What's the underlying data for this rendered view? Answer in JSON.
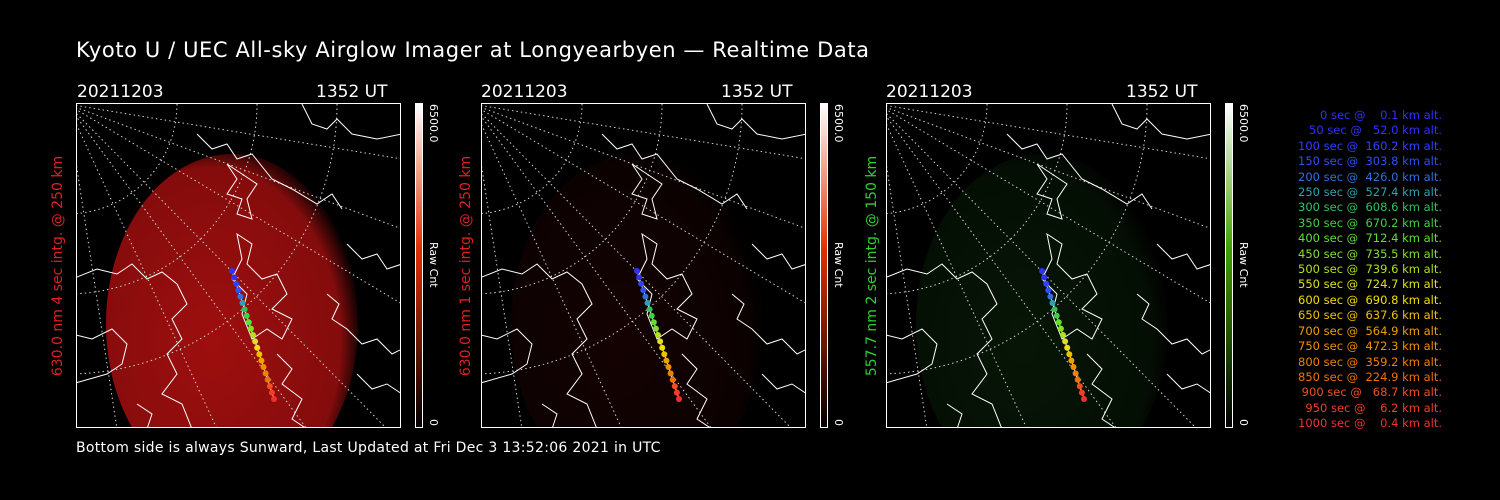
{
  "title": "Kyoto U / UEC All-sky Airglow Imager at Longyearbyen — Realtime Data",
  "footer": "Bottom side is always Sunward, Last Updated at Fri Dec  3 13:52:06 2021 in UTC",
  "panels": [
    {
      "date": "20211203",
      "time": "1352 UT",
      "label": "630.0 nm 4 sec intg. @ 250 km",
      "label_color": "#e02020",
      "cbar_max": "6500.0",
      "cbar_min": "0",
      "cbar_unit": "Raw Cnt",
      "cbar_color": "#e03000",
      "glow_color": "#b01010",
      "glow_level": 0.75
    },
    {
      "date": "20211203",
      "time": "1352 UT",
      "label": "630.0 nm 1 sec intg. @ 250 km",
      "label_color": "#e02020",
      "cbar_max": "6500.0",
      "cbar_min": "0",
      "cbar_unit": "Raw Cnt",
      "cbar_color": "#e03000",
      "glow_color": "#3a0606",
      "glow_level": 0.2
    },
    {
      "date": "20211203",
      "time": "1352 UT",
      "label": "557.7 nm 2 sec intg. @ 150 km",
      "label_color": "#30d030",
      "cbar_max": "6500.0",
      "cbar_min": "0",
      "cbar_unit": "Raw Cnt",
      "cbar_color": "#40a000",
      "glow_color": "#0e300e",
      "glow_level": 0.3
    }
  ],
  "legend": [
    {
      "text": "   0 sec @    0.1 km alt.",
      "color": "#3030ff"
    },
    {
      "text": "  50 sec @   52.0 km alt.",
      "color": "#3030ff"
    },
    {
      "text": " 100 sec @  160.2 km alt.",
      "color": "#3040ff"
    },
    {
      "text": " 150 sec @  303.8 km alt.",
      "color": "#3050f0"
    },
    {
      "text": " 200 sec @  426.0 km alt.",
      "color": "#3070e0"
    },
    {
      "text": " 250 sec @  527.4 km alt.",
      "color": "#30a0b0"
    },
    {
      "text": " 300 sec @  608.6 km alt.",
      "color": "#30c060"
    },
    {
      "text": " 350 sec @  670.2 km alt.",
      "color": "#40d040"
    },
    {
      "text": " 400 sec @  712.4 km alt.",
      "color": "#60e030"
    },
    {
      "text": " 450 sec @  735.5 km alt.",
      "color": "#80e030"
    },
    {
      "text": " 500 sec @  739.6 km alt.",
      "color": "#b0e020"
    },
    {
      "text": " 550 sec @  724.7 km alt.",
      "color": "#e0e020"
    },
    {
      "text": " 600 sec @  690.8 km alt.",
      "color": "#f0e000"
    },
    {
      "text": " 650 sec @  637.6 km alt.",
      "color": "#f0c000"
    },
    {
      "text": " 700 sec @  564.9 km alt.",
      "color": "#f0a000"
    },
    {
      "text": " 750 sec @  472.3 km alt.",
      "color": "#f09000"
    },
    {
      "text": " 800 sec @  359.2 km alt.",
      "color": "#f08000"
    },
    {
      "text": " 850 sec @  224.9 km alt.",
      "color": "#f07000"
    },
    {
      "text": " 900 sec @   68.7 km alt.",
      "color": "#f05020"
    },
    {
      "text": " 950 sec @    6.2 km alt.",
      "color": "#f04020"
    },
    {
      "text": "1000 sec @    0.4 km alt.",
      "color": "#f03030"
    }
  ]
}
